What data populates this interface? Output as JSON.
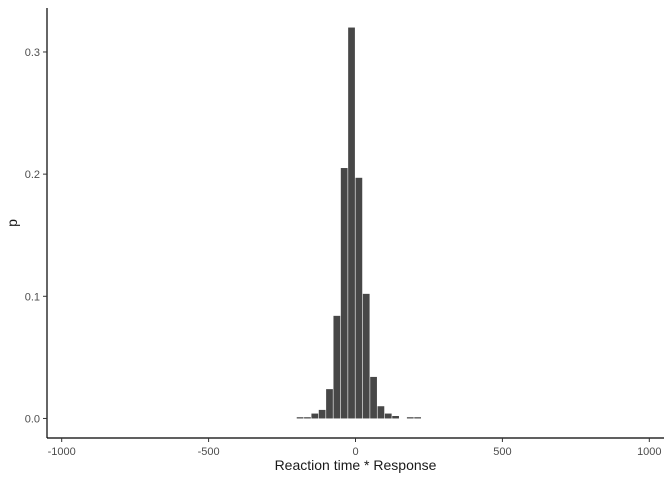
{
  "chart_data": {
    "type": "bar",
    "title": "",
    "xlabel": "Reaction time * Response",
    "ylabel": "p",
    "xlim": [
      -1050,
      1050
    ],
    "ylim": [
      -0.016,
      0.336
    ],
    "x_ticks": [
      -1000,
      -500,
      0,
      500,
      1000
    ],
    "x_tick_labels": [
      "-1000",
      "-500",
      "0",
      "500",
      "1000"
    ],
    "y_ticks": [
      0.0,
      0.1,
      0.2,
      0.3
    ],
    "y_tick_labels": [
      "0.0",
      "0.1",
      "0.2",
      "0.3"
    ],
    "grid": false,
    "legend": "none",
    "bar_color": "#474747",
    "bin_width": 25,
    "bins": [
      {
        "x": -187.5,
        "p": 0.001
      },
      {
        "x": -162.5,
        "p": 0.001
      },
      {
        "x": -137.5,
        "p": 0.004
      },
      {
        "x": -112.5,
        "p": 0.007
      },
      {
        "x": -87.5,
        "p": 0.024
      },
      {
        "x": -62.5,
        "p": 0.084
      },
      {
        "x": -37.5,
        "p": 0.205
      },
      {
        "x": -12.5,
        "p": 0.32
      },
      {
        "x": 12.5,
        "p": 0.197
      },
      {
        "x": 37.5,
        "p": 0.102
      },
      {
        "x": 62.5,
        "p": 0.034
      },
      {
        "x": 87.5,
        "p": 0.01
      },
      {
        "x": 112.5,
        "p": 0.004
      },
      {
        "x": 137.5,
        "p": 0.002
      },
      {
        "x": 187.5,
        "p": 0.001
      },
      {
        "x": 212.5,
        "p": 0.001
      }
    ]
  }
}
